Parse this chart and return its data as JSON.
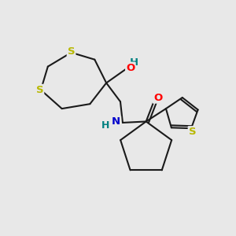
{
  "background_color": "#e8e8e8",
  "bond_color": "#1a1a1a",
  "bond_width": 1.5,
  "atom_colors": {
    "S": "#b8b800",
    "O": "#ff0000",
    "N": "#0000cc",
    "H": "#008080",
    "C": "#1a1a1a"
  },
  "figsize": [
    3.0,
    3.0
  ],
  "dpi": 100,
  "xlim": [
    0,
    10
  ],
  "ylim": [
    0,
    10
  ]
}
